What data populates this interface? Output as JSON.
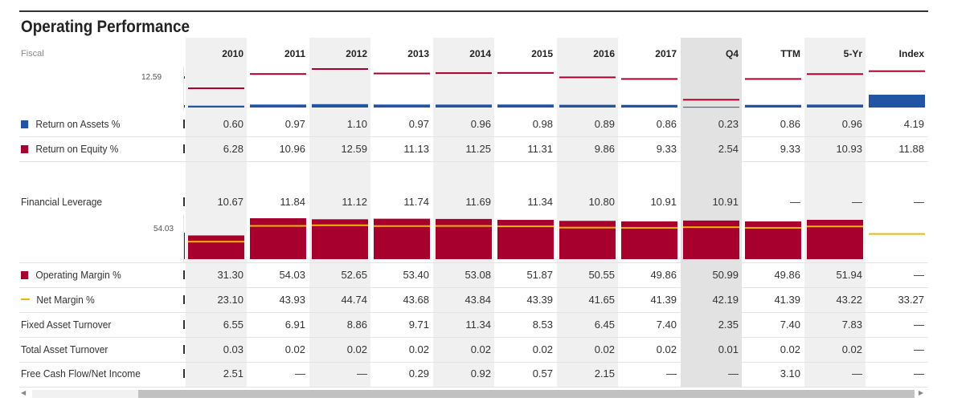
{
  "title": "Operating Performance",
  "fiscal_label": "Fiscal",
  "columns": [
    "2010",
    "2011",
    "2012",
    "2013",
    "2014",
    "2015",
    "2016",
    "2017",
    "Q4",
    "TTM",
    "5-Yr",
    "Index"
  ],
  "colors": {
    "roa": "#2254a4",
    "roe": "#a8002e",
    "operating_margin": "#a8002e",
    "net_margin": "#f2b705",
    "stripe": "#f0f0f0",
    "q4_stripe": "#e2e2e2"
  },
  "chart_top": {
    "scale_label": "12.59",
    "scale_max": 12.59,
    "roa": [
      0.6,
      0.97,
      1.1,
      0.97,
      0.96,
      0.98,
      0.89,
      0.86,
      0.23,
      0.86,
      0.96,
      4.19
    ],
    "roe": [
      6.28,
      10.96,
      12.59,
      11.13,
      11.25,
      11.31,
      9.86,
      9.33,
      2.54,
      9.33,
      10.93,
      11.88
    ]
  },
  "chart_bottom": {
    "scale_label": "54.03",
    "scale_max": 54.03,
    "operating_margin": [
      31.3,
      54.03,
      52.65,
      53.4,
      53.08,
      51.87,
      50.55,
      49.86,
      50.99,
      49.86,
      51.94,
      null
    ],
    "net_margin": [
      23.1,
      43.93,
      44.74,
      43.68,
      43.84,
      43.39,
      41.65,
      41.39,
      42.19,
      41.39,
      43.22,
      33.27
    ]
  },
  "rows": [
    {
      "label": "Return on Assets %",
      "legend": "square",
      "legend_color": "#2254a4",
      "values": [
        "0.60",
        "0.97",
        "1.10",
        "0.97",
        "0.96",
        "0.98",
        "0.89",
        "0.86",
        "0.23",
        "0.86",
        "0.96",
        "4.19"
      ]
    },
    {
      "label": "Return on Equity %",
      "legend": "square",
      "legend_color": "#a8002e",
      "values": [
        "6.28",
        "10.96",
        "12.59",
        "11.13",
        "11.25",
        "11.31",
        "9.86",
        "9.33",
        "2.54",
        "9.33",
        "10.93",
        "11.88"
      ]
    },
    {
      "label": "Financial Leverage",
      "legend": "none",
      "values": [
        "10.67",
        "11.84",
        "11.12",
        "11.74",
        "11.69",
        "11.34",
        "10.80",
        "10.91",
        "10.91",
        "—",
        "—",
        "—"
      ]
    },
    {
      "label": "Operating Margin %",
      "legend": "square",
      "legend_color": "#a8002e",
      "values": [
        "31.30",
        "54.03",
        "52.65",
        "53.40",
        "53.08",
        "51.87",
        "50.55",
        "49.86",
        "50.99",
        "49.86",
        "51.94",
        "—"
      ]
    },
    {
      "label": "Net Margin %",
      "legend": "line",
      "legend_color": "#f2b705",
      "values": [
        "23.10",
        "43.93",
        "44.74",
        "43.68",
        "43.84",
        "43.39",
        "41.65",
        "41.39",
        "42.19",
        "41.39",
        "43.22",
        "33.27"
      ]
    },
    {
      "label": "Fixed Asset Turnover",
      "legend": "none",
      "values": [
        "6.55",
        "6.91",
        "8.86",
        "9.71",
        "11.34",
        "8.53",
        "6.45",
        "7.40",
        "2.35",
        "7.40",
        "7.83",
        "—"
      ]
    },
    {
      "label": "Total Asset Turnover",
      "legend": "none",
      "values": [
        "0.03",
        "0.02",
        "0.02",
        "0.02",
        "0.02",
        "0.02",
        "0.02",
        "0.02",
        "0.01",
        "0.02",
        "0.02",
        "—"
      ]
    },
    {
      "label": "Free Cash Flow/Net Income",
      "legend": "none",
      "values": [
        "2.51",
        "—",
        "—",
        "0.29",
        "0.92",
        "0.57",
        "2.15",
        "—",
        "—",
        "3.10",
        "—",
        "—"
      ]
    }
  ],
  "scroll": {
    "left_arrow": "◀",
    "right_arrow": "▶"
  }
}
